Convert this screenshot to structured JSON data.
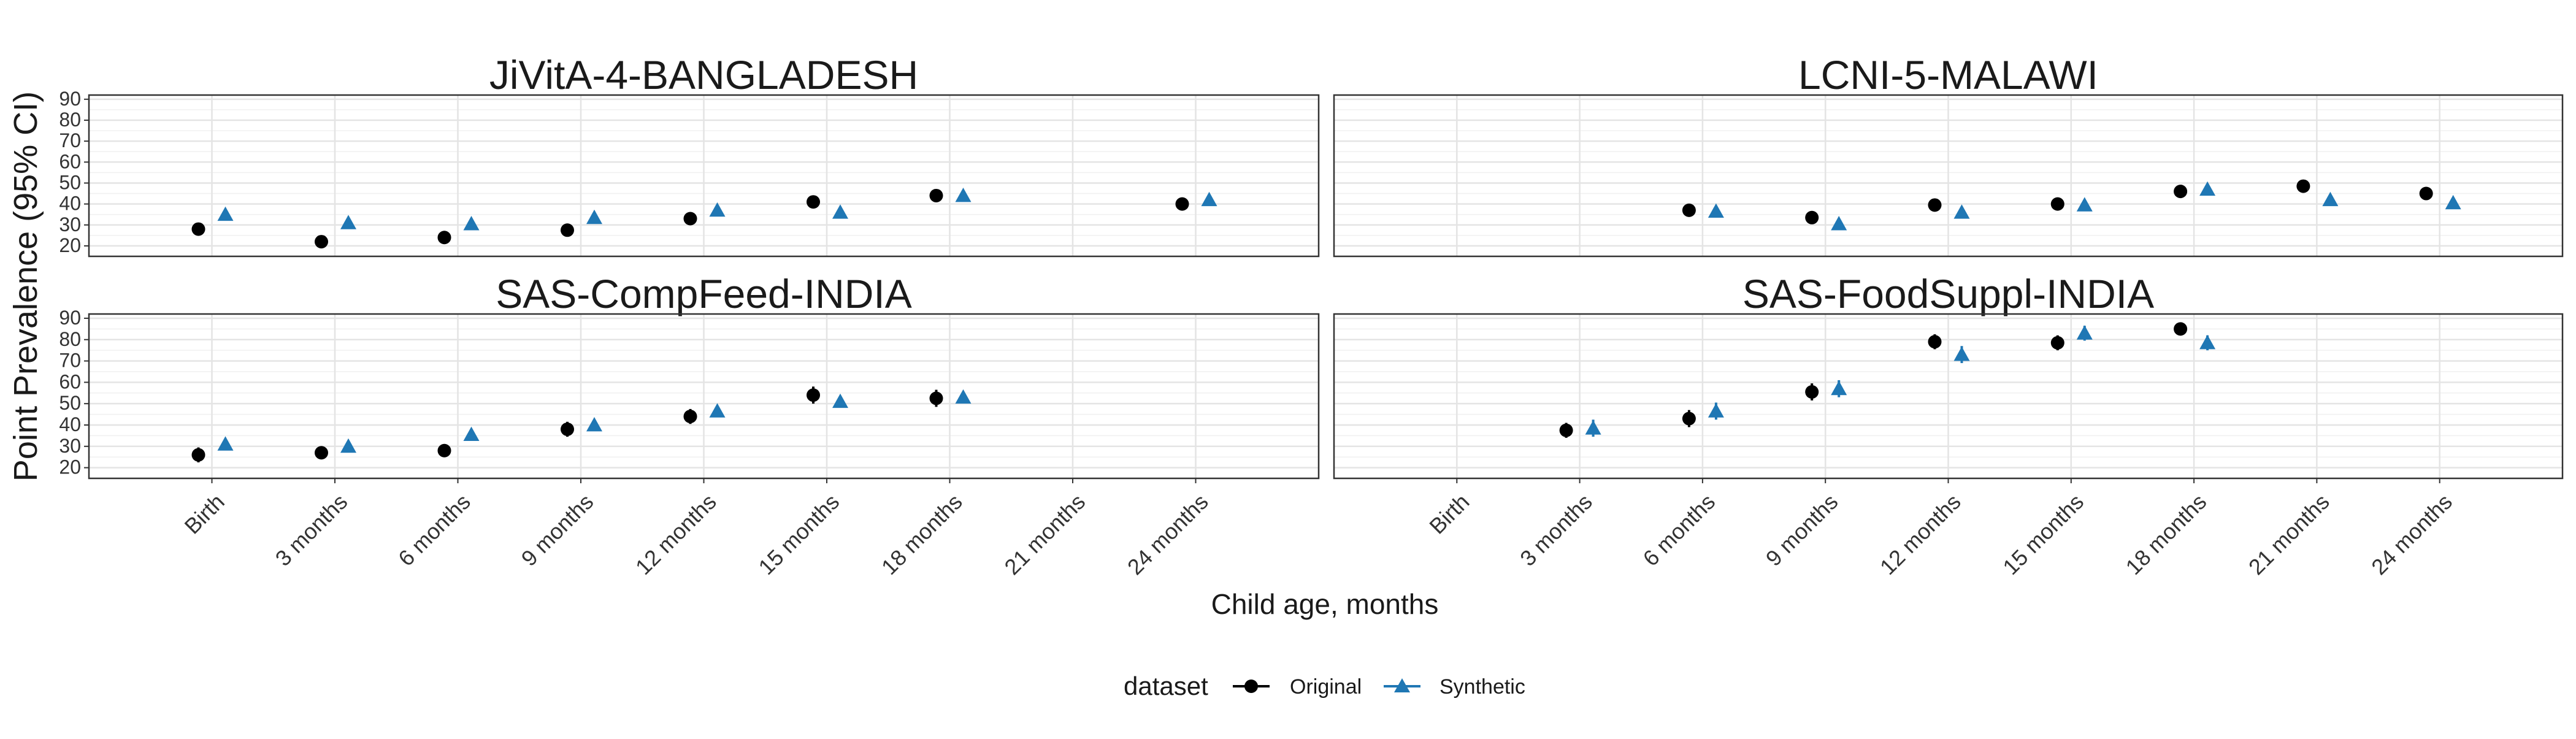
{
  "chart_data": {
    "type": "scatter",
    "ylabel": "Point Prevalence (95% CI)",
    "xlabel": "Child age, months",
    "categories": [
      "Birth",
      "3 months",
      "6 months",
      "9 months",
      "12 months",
      "15 months",
      "18 months",
      "21 months",
      "24 months"
    ],
    "yticks": [
      20,
      30,
      40,
      50,
      60,
      70,
      80,
      90
    ],
    "ylim": [
      15,
      92
    ],
    "grid": true,
    "legend": {
      "title": "dataset",
      "position": "bottom",
      "entries": [
        "Original",
        "Synthetic"
      ]
    },
    "colors": {
      "Original": "#000000",
      "Synthetic": "#1f77b4"
    },
    "panels": [
      {
        "title": "JiVitA-4-BANGLADESH",
        "series": [
          {
            "name": "Original",
            "points": [
              {
                "x": "Birth",
                "y": 28,
                "lo": 26.5,
                "hi": 29.5
              },
              {
                "x": "3 months",
                "y": 22,
                "lo": 20.8,
                "hi": 23.2
              },
              {
                "x": "6 months",
                "y": 24,
                "lo": 22.8,
                "hi": 25.2
              },
              {
                "x": "9 months",
                "y": 27.5,
                "lo": 26.2,
                "hi": 28.8
              },
              {
                "x": "12 months",
                "y": 33,
                "lo": 31.6,
                "hi": 34.4
              },
              {
                "x": "15 months",
                "y": 41,
                "lo": 39.5,
                "hi": 42.5
              },
              {
                "x": "18 months",
                "y": 44,
                "lo": 42.5,
                "hi": 45.5
              },
              {
                "x": "24 months",
                "y": 40,
                "lo": 38.5,
                "hi": 41.5
              }
            ]
          },
          {
            "name": "Synthetic",
            "points": [
              {
                "x": "Birth",
                "y": 35,
                "lo": 33.5,
                "hi": 36.5
              },
              {
                "x": "3 months",
                "y": 31,
                "lo": 29.5,
                "hi": 32.5
              },
              {
                "x": "6 months",
                "y": 30.5,
                "lo": 29,
                "hi": 32
              },
              {
                "x": "9 months",
                "y": 33.5,
                "lo": 32,
                "hi": 35
              },
              {
                "x": "12 months",
                "y": 37,
                "lo": 35.5,
                "hi": 38.5
              },
              {
                "x": "15 months",
                "y": 36,
                "lo": 34.5,
                "hi": 37.5
              },
              {
                "x": "18 months",
                "y": 44,
                "lo": 42.5,
                "hi": 45.5
              },
              {
                "x": "24 months",
                "y": 42,
                "lo": 40.5,
                "hi": 43.5
              }
            ]
          }
        ]
      },
      {
        "title": "LCNI-5-MALAWI",
        "series": [
          {
            "name": "Original",
            "points": [
              {
                "x": "6 months",
                "y": 37,
                "lo": 35,
                "hi": 39
              },
              {
                "x": "9 months",
                "y": 33.5,
                "lo": 31,
                "hi": 36
              },
              {
                "x": "12 months",
                "y": 39.5,
                "lo": 37,
                "hi": 42
              },
              {
                "x": "15 months",
                "y": 40,
                "lo": 37.5,
                "hi": 42.5
              },
              {
                "x": "18 months",
                "y": 46,
                "lo": 43.5,
                "hi": 48.5
              },
              {
                "x": "21 months",
                "y": 48.5,
                "lo": 46,
                "hi": 51
              },
              {
                "x": "24 months",
                "y": 45,
                "lo": 42.5,
                "hi": 47.5
              }
            ]
          },
          {
            "name": "Synthetic",
            "points": [
              {
                "x": "6 months",
                "y": 36.5,
                "lo": 34,
                "hi": 39
              },
              {
                "x": "9 months",
                "y": 30.5,
                "lo": 28,
                "hi": 33
              },
              {
                "x": "12 months",
                "y": 36,
                "lo": 33.5,
                "hi": 38.5
              },
              {
                "x": "15 months",
                "y": 39.5,
                "lo": 37,
                "hi": 42
              },
              {
                "x": "18 months",
                "y": 47,
                "lo": 44.5,
                "hi": 49.5
              },
              {
                "x": "21 months",
                "y": 42,
                "lo": 39.5,
                "hi": 44.5
              },
              {
                "x": "24 months",
                "y": 40.5,
                "lo": 38,
                "hi": 43
              }
            ]
          }
        ]
      },
      {
        "title": "SAS-CompFeed-INDIA",
        "series": [
          {
            "name": "Original",
            "points": [
              {
                "x": "Birth",
                "y": 26,
                "lo": 22.5,
                "hi": 29.5
              },
              {
                "x": "3 months",
                "y": 27,
                "lo": 24,
                "hi": 30
              },
              {
                "x": "6 months",
                "y": 28,
                "lo": 25,
                "hi": 31
              },
              {
                "x": "9 months",
                "y": 38,
                "lo": 34.5,
                "hi": 41.5
              },
              {
                "x": "12 months",
                "y": 44,
                "lo": 40.5,
                "hi": 47.5
              },
              {
                "x": "15 months",
                "y": 54,
                "lo": 50,
                "hi": 58
              },
              {
                "x": "18 months",
                "y": 52.5,
                "lo": 48.5,
                "hi": 56.5
              }
            ]
          },
          {
            "name": "Synthetic",
            "points": [
              {
                "x": "Birth",
                "y": 31,
                "lo": 29,
                "hi": 33
              },
              {
                "x": "3 months",
                "y": 30,
                "lo": 28,
                "hi": 32
              },
              {
                "x": "6 months",
                "y": 35.5,
                "lo": 33.5,
                "hi": 37.5
              },
              {
                "x": "9 months",
                "y": 40,
                "lo": 38,
                "hi": 42
              },
              {
                "x": "12 months",
                "y": 46.5,
                "lo": 44.5,
                "hi": 48.5
              },
              {
                "x": "15 months",
                "y": 51,
                "lo": 49,
                "hi": 53
              },
              {
                "x": "18 months",
                "y": 53,
                "lo": 51,
                "hi": 55
              }
            ]
          }
        ]
      },
      {
        "title": "SAS-FoodSuppl-INDIA",
        "series": [
          {
            "name": "Original",
            "points": [
              {
                "x": "3 months",
                "y": 37.5,
                "lo": 34,
                "hi": 41
              },
              {
                "x": "6 months",
                "y": 43,
                "lo": 39,
                "hi": 47
              },
              {
                "x": "9 months",
                "y": 55.5,
                "lo": 51.5,
                "hi": 59.5
              },
              {
                "x": "12 months",
                "y": 79,
                "lo": 75.5,
                "hi": 82.5
              },
              {
                "x": "15 months",
                "y": 78.5,
                "lo": 75,
                "hi": 82
              },
              {
                "x": "18 months",
                "y": 85,
                "lo": 82,
                "hi": 88
              }
            ]
          },
          {
            "name": "Synthetic",
            "points": [
              {
                "x": "3 months",
                "y": 38.5,
                "lo": 34.5,
                "hi": 42.5
              },
              {
                "x": "6 months",
                "y": 46.5,
                "lo": 42.5,
                "hi": 50.5
              },
              {
                "x": "9 months",
                "y": 57,
                "lo": 53,
                "hi": 61
              },
              {
                "x": "12 months",
                "y": 73,
                "lo": 69,
                "hi": 77
              },
              {
                "x": "15 months",
                "y": 83,
                "lo": 79.5,
                "hi": 86.5
              },
              {
                "x": "18 months",
                "y": 78.5,
                "lo": 75,
                "hi": 82
              }
            ]
          }
        ]
      }
    ]
  }
}
